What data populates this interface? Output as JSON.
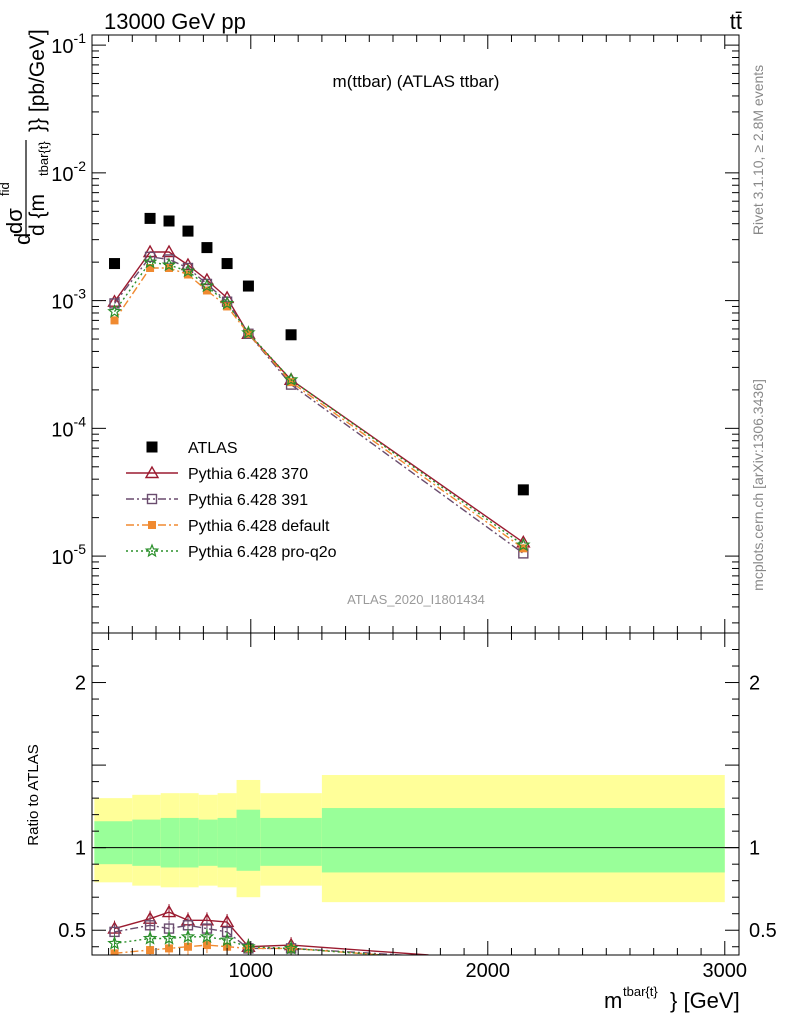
{
  "header": {
    "left": "13000 GeV pp",
    "right": "tt̄"
  },
  "side_labels": {
    "rivet": "Rivet 3.1.10, ≥ 2.8M events",
    "mcplots": "mcplots.cern.ch [arXiv:1306.3436]"
  },
  "chart_data": [
    {
      "type": "scatter",
      "panel": "main",
      "title": "m(ttbar) (ATLAS ttbar)",
      "watermark": "ATLAS_2020_I1801434",
      "ylabel_parts": {
        "d1": "d",
        "dsigma": "dσ",
        "sigma_sup": "fid",
        "d2": "d {m",
        "m_sub": "tbar{t}",
        "close": "}} [pb/GeV]"
      },
      "yscale": "log",
      "ylim": [
        2.5e-06,
        0.12
      ],
      "xlim": [
        330,
        3060
      ],
      "y_ticks": [
        {
          "value": 0.1,
          "base": "10",
          "exp": "-1"
        },
        {
          "value": 0.01,
          "base": "10",
          "exp": "-2"
        },
        {
          "value": 0.001,
          "base": "10",
          "exp": "-3"
        },
        {
          "value": 0.0001,
          "base": "10",
          "exp": "-4"
        },
        {
          "value": 1e-05,
          "base": "10",
          "exp": "-5"
        }
      ],
      "legend": {
        "position": "bottom-left"
      },
      "x": [
        425,
        575,
        655,
        735,
        815,
        900,
        990,
        1170,
        2150
      ],
      "series": [
        {
          "name": "ATLAS",
          "color": "#000000",
          "marker": "square",
          "line": "none",
          "values": [
            0.00195,
            0.0044,
            0.0042,
            0.0035,
            0.0026,
            0.00195,
            0.0013,
            0.00054,
            3.3e-05
          ]
        },
        {
          "name": "Pythia 6.428 370",
          "color": "#9b1b30",
          "marker": "triangle-open",
          "line": "solid",
          "values": [
            0.00098,
            0.0024,
            0.0024,
            0.0019,
            0.00145,
            0.00105,
            0.00055,
            0.00024,
            1.28e-05
          ]
        },
        {
          "name": "Pythia 6.428 391",
          "color": "#6a4c6e",
          "marker": "square-open",
          "line": "dashdot",
          "values": [
            0.00095,
            0.0022,
            0.0021,
            0.0018,
            0.00135,
            0.00098,
            0.00055,
            0.00022,
            1.05e-05
          ]
        },
        {
          "name": "Pythia 6.428 default",
          "color": "#f08a30",
          "marker": "square-filled",
          "line": "dashdot",
          "values": [
            0.0007,
            0.0018,
            0.0018,
            0.0016,
            0.0012,
            0.0009,
            0.00055,
            0.00023,
            1.15e-05
          ]
        },
        {
          "name": "Pythia 6.428 pro-q2o",
          "color": "#2a8f2a",
          "marker": "star",
          "line": "dotted",
          "values": [
            0.00082,
            0.002,
            0.0019,
            0.0017,
            0.0013,
            0.00095,
            0.00056,
            0.00024,
            1.22e-05
          ]
        }
      ]
    },
    {
      "type": "line",
      "panel": "ratio",
      "ylabel": "Ratio to ATLAS",
      "xlabel_parts": {
        "m": "m",
        "sup": "tbar{t}",
        "close": "} [GeV]"
      },
      "ylim": [
        0.35,
        2.3
      ],
      "xlim": [
        330,
        3060
      ],
      "y_ticks": [
        "0.5",
        "1",
        "2"
      ],
      "x_ticks": [
        "1000",
        "2000",
        "3000"
      ],
      "bands": [
        {
          "x0": 340,
          "x1": 500,
          "yellow": [
            0.79,
            1.3
          ],
          "green": [
            0.9,
            1.16
          ]
        },
        {
          "x0": 500,
          "x1": 620,
          "yellow": [
            0.77,
            1.32
          ],
          "green": [
            0.89,
            1.17
          ]
        },
        {
          "x0": 620,
          "x1": 700,
          "yellow": [
            0.76,
            1.33
          ],
          "green": [
            0.88,
            1.18
          ]
        },
        {
          "x0": 700,
          "x1": 780,
          "yellow": [
            0.76,
            1.33
          ],
          "green": [
            0.88,
            1.18
          ]
        },
        {
          "x0": 780,
          "x1": 860,
          "yellow": [
            0.77,
            1.32
          ],
          "green": [
            0.89,
            1.17
          ]
        },
        {
          "x0": 860,
          "x1": 940,
          "yellow": [
            0.76,
            1.33
          ],
          "green": [
            0.88,
            1.18
          ]
        },
        {
          "x0": 940,
          "x1": 1040,
          "yellow": [
            0.7,
            1.41
          ],
          "green": [
            0.86,
            1.23
          ]
        },
        {
          "x0": 1040,
          "x1": 1300,
          "yellow": [
            0.77,
            1.33
          ],
          "green": [
            0.89,
            1.18
          ]
        },
        {
          "x0": 1300,
          "x1": 3000,
          "yellow": [
            0.67,
            1.44
          ],
          "green": [
            0.85,
            1.24
          ]
        }
      ],
      "x": [
        425,
        575,
        655,
        735,
        815,
        900,
        990,
        1170,
        1750
      ],
      "series": [
        {
          "name": "Pythia 6.428 370",
          "color": "#9b1b30",
          "values": [
            0.51,
            0.57,
            0.61,
            0.56,
            0.56,
            0.55,
            0.4,
            0.41,
            0.35
          ]
        },
        {
          "name": "Pythia 6.428 391",
          "color": "#6a4c6e",
          "values": [
            0.49,
            0.53,
            0.51,
            0.53,
            0.51,
            0.49,
            0.39,
            0.39,
            0.34
          ]
        },
        {
          "name": "Pythia 6.428 default",
          "color": "#f08a30",
          "values": [
            0.36,
            0.38,
            0.39,
            0.4,
            0.41,
            0.4,
            0.39,
            0.39,
            0.33
          ]
        },
        {
          "name": "Pythia 6.428 pro-q2o",
          "color": "#2a8f2a",
          "values": [
            0.42,
            0.45,
            0.45,
            0.46,
            0.46,
            0.44,
            0.4,
            0.39,
            0.33
          ]
        }
      ]
    }
  ]
}
